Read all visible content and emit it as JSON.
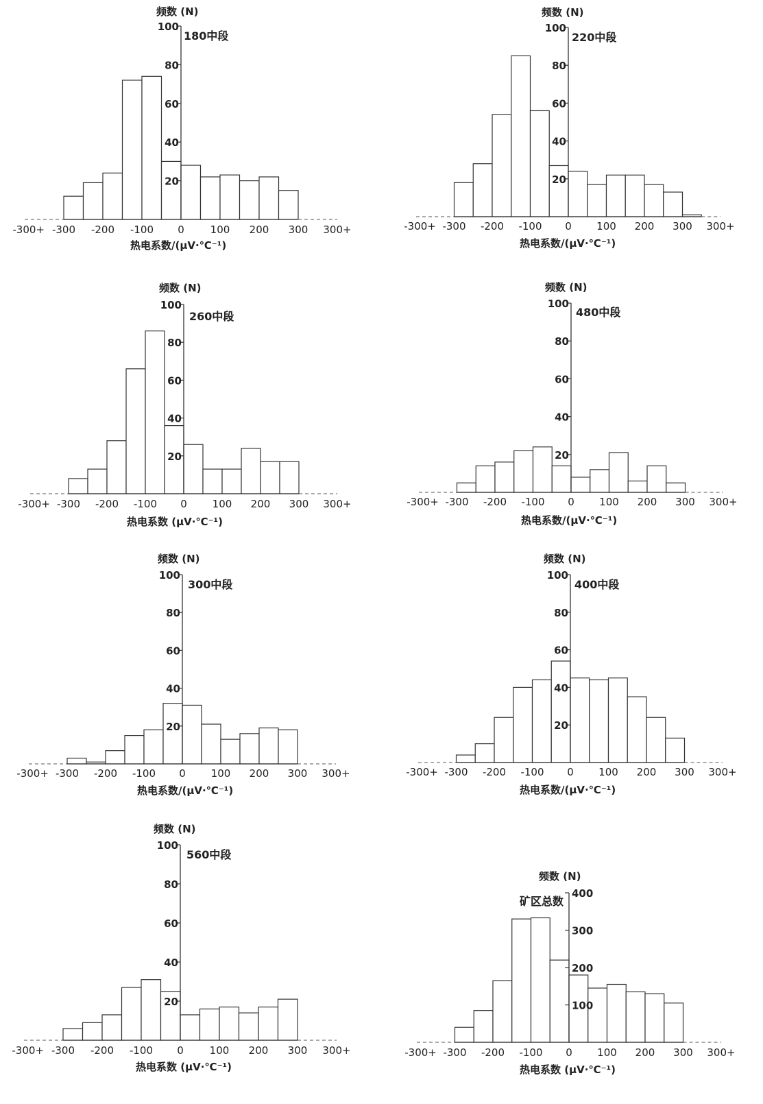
{
  "chart_data": [
    {
      "type": "bar",
      "title": "180中段",
      "ylabel": "频数 (N)",
      "xlabel": "热电系数/(μV·℃⁻¹)",
      "x_ticks": [
        "-300+",
        "-300",
        "-200",
        "-100",
        "0",
        "100",
        "200",
        "300",
        "300+"
      ],
      "y_ticks": [
        100,
        80,
        60,
        40,
        20
      ],
      "ylim": [
        0,
        100
      ],
      "bin_edges": [
        -300,
        -250,
        -200,
        -150,
        -100,
        -50,
        0,
        50,
        100,
        150,
        200,
        250,
        300
      ],
      "values": [
        12,
        19,
        24,
        72,
        74,
        30,
        28,
        22,
        23,
        20,
        22,
        15
      ]
    },
    {
      "type": "bar",
      "title": "220中段",
      "ylabel": "频数 (N)",
      "xlabel": "热电系数/(μV·℃⁻¹)",
      "x_ticks": [
        "-300+",
        "-300",
        "-200",
        "-100",
        "0",
        "100",
        "200",
        "300",
        "300+"
      ],
      "y_ticks": [
        100,
        80,
        60,
        40,
        20
      ],
      "ylim": [
        0,
        100
      ],
      "bin_edges": [
        -300,
        -250,
        -200,
        -150,
        -100,
        -50,
        0,
        50,
        100,
        150,
        200,
        250,
        300,
        350
      ],
      "values": [
        18,
        28,
        54,
        85,
        56,
        27,
        24,
        17,
        22,
        22,
        17,
        13,
        1
      ]
    },
    {
      "type": "bar",
      "title": "260中段",
      "ylabel": "频数 (N)",
      "xlabel": "热电系数 (μV·℃⁻¹)",
      "x_ticks": [
        "-300+",
        "-300",
        "-200",
        "-100",
        "0",
        "100",
        "200",
        "300",
        "300+"
      ],
      "y_ticks": [
        100,
        80,
        60,
        40,
        20
      ],
      "ylim": [
        0,
        100
      ],
      "bin_edges": [
        -300,
        -250,
        -200,
        -150,
        -100,
        -50,
        0,
        50,
        100,
        150,
        200,
        250,
        300
      ],
      "values": [
        8,
        13,
        28,
        66,
        86,
        36,
        26,
        13,
        13,
        24,
        17,
        17
      ]
    },
    {
      "type": "bar",
      "title": "480中段",
      "ylabel": "频数 (N)",
      "xlabel": "热电系数/(μV·℃⁻¹)",
      "x_ticks": [
        "-300+",
        "-300",
        "-200",
        "-100",
        "0",
        "100",
        "200",
        "300",
        "300+"
      ],
      "y_ticks": [
        100,
        80,
        60,
        40,
        20
      ],
      "ylim": [
        0,
        100
      ],
      "bin_edges": [
        -300,
        -250,
        -200,
        -150,
        -100,
        -50,
        0,
        50,
        100,
        150,
        200,
        250,
        300
      ],
      "values": [
        5,
        14,
        16,
        22,
        24,
        14,
        8,
        12,
        21,
        6,
        14,
        5
      ]
    },
    {
      "type": "bar",
      "title": "300中段",
      "ylabel": "频数 (N)",
      "xlabel": "热电系数/(μV·℃⁻¹)",
      "x_ticks": [
        "-300+",
        "-300",
        "-200",
        "-100",
        "0",
        "100",
        "200",
        "300",
        "300+"
      ],
      "y_ticks": [
        100,
        80,
        60,
        40,
        20
      ],
      "ylim": [
        0,
        100
      ],
      "bin_edges": [
        -300,
        -250,
        -200,
        -150,
        -100,
        -50,
        0,
        50,
        100,
        150,
        200,
        250,
        300
      ],
      "values": [
        3,
        1,
        7,
        15,
        18,
        32,
        31,
        21,
        13,
        16,
        19,
        18
      ]
    },
    {
      "type": "bar",
      "title": "400中段",
      "ylabel": "频数 (N)",
      "xlabel": "热电系数/(μV·℃⁻¹)",
      "x_ticks": [
        "-300+",
        "-300",
        "-200",
        "-100",
        "0",
        "100",
        "200",
        "300",
        "300+"
      ],
      "y_ticks": [
        100,
        80,
        60,
        40,
        20
      ],
      "ylim": [
        0,
        100
      ],
      "bin_edges": [
        -300,
        -250,
        -200,
        -150,
        -100,
        -50,
        0,
        50,
        100,
        150,
        200,
        250,
        300
      ],
      "values": [
        4,
        10,
        24,
        40,
        44,
        54,
        45,
        44,
        45,
        35,
        24,
        13
      ]
    },
    {
      "type": "bar",
      "title": "560中段",
      "ylabel": "频数 (N)",
      "xlabel": "热电系数 (μV·℃⁻¹)",
      "x_ticks": [
        "-300+",
        "-300",
        "-200",
        "-100",
        "0",
        "100",
        "200",
        "300",
        "300+"
      ],
      "y_ticks": [
        100,
        80,
        60,
        40,
        20
      ],
      "ylim": [
        0,
        100
      ],
      "bin_edges": [
        -300,
        -250,
        -200,
        -150,
        -100,
        -50,
        0,
        50,
        100,
        150,
        200,
        250,
        300
      ],
      "values": [
        6,
        9,
        13,
        27,
        31,
        25,
        13,
        16,
        17,
        14,
        17,
        21
      ]
    },
    {
      "type": "bar",
      "title": "矿区总数",
      "ylabel": "频数 (N)",
      "xlabel": "热电系数 (μV·℃⁻¹)",
      "x_ticks": [
        "-300+",
        "-300",
        "-200",
        "-100",
        "0",
        "100",
        "200",
        "300",
        "300+"
      ],
      "y_ticks": [
        400,
        300,
        200,
        100
      ],
      "ylim": [
        0,
        400
      ],
      "bin_edges": [
        -300,
        -250,
        -200,
        -150,
        -100,
        -50,
        0,
        50,
        100,
        150,
        200,
        250,
        300
      ],
      "values": [
        40,
        85,
        165,
        330,
        333,
        220,
        180,
        145,
        155,
        135,
        130,
        105
      ]
    }
  ]
}
